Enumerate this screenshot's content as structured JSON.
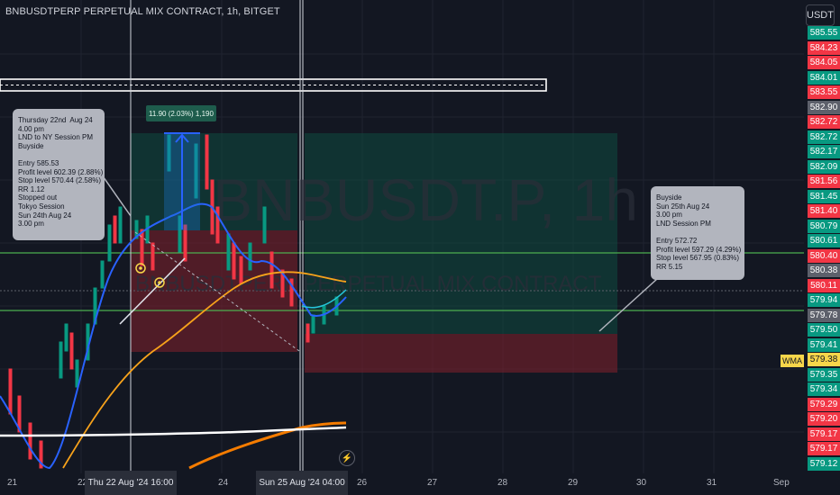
{
  "header": {
    "title": "BNBUSDTPERP PERPETUAL MIX CONTRACT, 1h, BITGET",
    "currency": "USDT"
  },
  "watermark": {
    "symbol": "BNBUSDT.P, 1h",
    "subtitle": "BNBUSDTPERP PERPETUAL MIX CONTRACT"
  },
  "price_axis": [
    {
      "text": "585.55",
      "color": "#089981"
    },
    {
      "text": "584.23",
      "color": "#f23645"
    },
    {
      "text": "584.05",
      "color": "#f23645"
    },
    {
      "text": "584.01",
      "color": "#089981"
    },
    {
      "text": "583.55",
      "color": "#f23645"
    },
    {
      "text": "582.90",
      "color": "#5d606b"
    },
    {
      "text": "582.72",
      "color": "#f23645"
    },
    {
      "text": "582.72",
      "color": "#089981"
    },
    {
      "text": "582.17",
      "color": "#089981"
    },
    {
      "text": "582.09",
      "color": "#089981"
    },
    {
      "text": "581.56",
      "color": "#f23645"
    },
    {
      "text": "581.45",
      "color": "#089981"
    },
    {
      "text": "581.40",
      "color": "#f23645"
    },
    {
      "text": "580.79",
      "color": "#089981"
    },
    {
      "text": "580.61",
      "color": "#089981"
    },
    {
      "text": "580.40",
      "color": "#f23645"
    },
    {
      "text": "580.38",
      "color": "#5d606b"
    },
    {
      "text": "580.11",
      "color": "#f23645"
    },
    {
      "text": "579.94",
      "color": "#089981"
    },
    {
      "text": "579.78",
      "color": "#5d606b"
    },
    {
      "text": "579.50",
      "color": "#089981"
    },
    {
      "text": "579.41",
      "color": "#089981"
    },
    {
      "text": "579.38",
      "color": "#f7d64a"
    },
    {
      "text": "579.35",
      "color": "#089981"
    },
    {
      "text": "579.34",
      "color": "#089981"
    },
    {
      "text": "579.29",
      "color": "#f23645"
    },
    {
      "text": "579.20",
      "color": "#f23645"
    },
    {
      "text": "579.17",
      "color": "#f23645"
    },
    {
      "text": "579.17",
      "color": "#f23645"
    },
    {
      "text": "579.12",
      "color": "#089981"
    }
  ],
  "wma_label": "WMA",
  "measure_label": "11.90 (2.03%) 1,190",
  "note_left": "Thursday 22nd  Aug 24\n4.00 pm\nLND to NY Session PM\nBuyside\n\nEntry 585.53\nProfit level 602.39 (2.88%)\nStop level 570.44 (2.58%)\nRR 1.12\nStopped out\nTokyo Session\nSun 24th Aug 24\n3.00 pm",
  "note_right": "Buyside\nSun 25th Aug 24\n3.00 pm\nLND Session PM\n\nEntry 572.72\nProfit level 597.29 (4.29%)\nStop level 567.95 (0.83%)\nRR 5.15",
  "time_axis": {
    "ticks": [
      "21",
      "22",
      "24",
      "26",
      "27",
      "28",
      "29",
      "30",
      "31",
      "Sep"
    ],
    "selected": [
      "Thu 22 Aug '24   16:00",
      "Sun 25 Aug '24   04:00"
    ]
  },
  "colors": {
    "bg": "#131722",
    "green": "#089981",
    "red": "#f23645",
    "wma": "#f7d64a",
    "orange": "#f7a21b"
  }
}
